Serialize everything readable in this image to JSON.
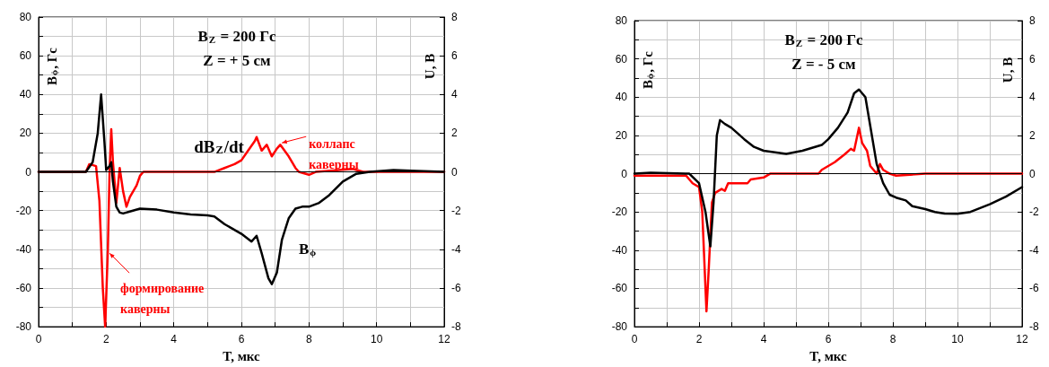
{
  "chart_data": [
    {
      "type": "line",
      "title": "B$_{Z}$ = 200 Гс",
      "subtitle": "Z = + 5 см",
      "xlabel": "T, мкс",
      "ylabel": "B$_{ϕ}$, Гс",
      "y2label": "U, В",
      "xlim": [
        0,
        12
      ],
      "xticks": [
        0,
        {
          "value": 1,
          "label": null
        },
        2,
        {
          "value": 3,
          "label": null
        },
        4,
        {
          "value": 5,
          "label": null
        },
        6,
        {
          "value": 7,
          "label": null
        },
        8,
        {
          "value": 9,
          "label": null
        },
        10,
        {
          "value": 11,
          "label": null
        },
        12
      ],
      "ylim": [
        -80,
        80
      ],
      "yticks": [
        -80,
        {
          "value": -70,
          "label": null
        },
        -60,
        {
          "value": -50,
          "label": null
        },
        -40,
        {
          "value": -30,
          "label": null
        },
        -20,
        {
          "value": -10,
          "label": null
        },
        0,
        {
          "value": 10,
          "label": null
        },
        20,
        {
          "value": 30,
          "label": null
        },
        40,
        {
          "value": 50,
          "label": null
        },
        60,
        {
          "value": 70,
          "label": null
        },
        80
      ],
      "y2lim": [
        -8,
        8
      ],
      "y2ticks": [
        -8,
        -6,
        -4,
        -2,
        0,
        2,
        4,
        6,
        8
      ],
      "grid": true,
      "marker": "none",
      "line_style": "solid",
      "ref_lines": [
        {
          "axis": "y",
          "value": 0,
          "color": "#000000"
        }
      ],
      "annotations": [
        {
          "text": "формирование каверны",
          "x": 2.1,
          "y": -42
        },
        {
          "text": "коллапс каверны",
          "x": 7.2,
          "y": 15
        }
      ],
      "series": [
        {
          "name": "B$_{ϕ}$",
          "color": "#000000",
          "x": [
            0,
            1.4,
            1.6,
            1.75,
            1.85,
            1.95,
            2.0,
            2.1,
            2.15,
            2.2,
            2.3,
            2.4,
            2.5,
            2.7,
            3.0,
            3.5,
            4.0,
            4.5,
            5.0,
            5.2,
            5.5,
            6.0,
            6.3,
            6.45,
            6.6,
            6.8,
            6.9,
            7.05,
            7.2,
            7.4,
            7.6,
            7.8,
            8.0,
            8.3,
            8.6,
            9.0,
            9.4,
            9.8,
            10.5,
            11.2,
            12
          ],
          "values": [
            0,
            0,
            5,
            20,
            40,
            15,
            1,
            3,
            5,
            -5,
            -18,
            -21,
            -21.5,
            -20.5,
            -19,
            -19.5,
            -21,
            -22,
            -22.5,
            -23,
            -27,
            -32,
            -36,
            -33,
            -42,
            -55,
            -58,
            -52,
            -35,
            -24,
            -19,
            -18,
            -18,
            -16,
            -12,
            -5,
            -1,
            0,
            1,
            0.5,
            0
          ]
        },
        {
          "name": "dB$_{Z}$/dt",
          "color": "#ff0000",
          "axis": "y2",
          "x": [
            0,
            1.4,
            1.5,
            1.7,
            1.8,
            1.9,
            1.97,
            2.05,
            2.1,
            2.15,
            2.2,
            2.3,
            2.4,
            2.5,
            2.6,
            2.7,
            2.9,
            3.0,
            3.1,
            5.2,
            5.5,
            5.8,
            6.0,
            6.2,
            6.4,
            6.45,
            6.6,
            6.75,
            6.9,
            7.05,
            7.15,
            7.4,
            7.6,
            7.7,
            8.0,
            8.2,
            9.3,
            9.6,
            12
          ],
          "values": [
            0,
            0,
            0.4,
            0.3,
            -1.5,
            -6,
            -8,
            -4,
            0,
            2.2,
            0.5,
            -1.6,
            0.2,
            -1,
            -1.8,
            -1.3,
            -0.7,
            -0.2,
            0,
            0,
            0.2,
            0.4,
            0.6,
            1.1,
            1.6,
            1.8,
            1.1,
            1.4,
            0.8,
            1.2,
            1.4,
            0.8,
            0.2,
            0,
            -0.15,
            0,
            0.15,
            0,
            0
          ]
        }
      ]
    },
    {
      "type": "line",
      "title": "B$_{Z}$ = 200 Гс",
      "subtitle": "Z = - 5 см",
      "xlabel": "T, мкс",
      "ylabel": "B$_{ϕ}$, Гс",
      "y2label": "U, В",
      "xlim": [
        0,
        12
      ],
      "xticks": [
        0,
        {
          "value": 1,
          "label": null
        },
        2,
        {
          "value": 3,
          "label": null
        },
        4,
        {
          "value": 5,
          "label": null
        },
        6,
        {
          "value": 7,
          "label": null
        },
        8,
        {
          "value": 9,
          "label": null
        },
        10,
        {
          "value": 11,
          "label": null
        },
        12
      ],
      "ylim": [
        -80,
        80
      ],
      "yticks": [
        -80,
        {
          "value": -70,
          "label": null
        },
        -60,
        {
          "value": -50,
          "label": null
        },
        -40,
        {
          "value": -30,
          "label": null
        },
        -20,
        {
          "value": -10,
          "label": null
        },
        0,
        {
          "value": 10,
          "label": null
        },
        20,
        {
          "value": 30,
          "label": null
        },
        40,
        {
          "value": 50,
          "label": null
        },
        60,
        {
          "value": 70,
          "label": null
        },
        80
      ],
      "y2lim": [
        -8,
        8
      ],
      "y2ticks": [
        -8,
        -6,
        -4,
        -2,
        0,
        2,
        4,
        6,
        8
      ],
      "grid": true,
      "marker": "none",
      "line_style": "solid",
      "ref_lines": [
        {
          "axis": "y",
          "value": 0,
          "color": "#000000"
        }
      ],
      "series": [
        {
          "color": "#000000",
          "x": [
            0,
            0.5,
            1.7,
            2.0,
            2.2,
            2.35,
            2.45,
            2.55,
            2.65,
            2.8,
            3.0,
            3.4,
            3.7,
            4.0,
            4.7,
            5.2,
            5.8,
            6.0,
            6.3,
            6.6,
            6.8,
            6.95,
            7.15,
            7.3,
            7.5,
            7.7,
            7.9,
            8.1,
            8.4,
            8.6,
            9.0,
            9.3,
            9.6,
            10.0,
            10.4,
            11.0,
            11.5,
            12
          ],
          "values": [
            0,
            0.5,
            0,
            -5,
            -20,
            -38,
            -15,
            20,
            28,
            26,
            24,
            18,
            14,
            12,
            10.3,
            12,
            15,
            18,
            24,
            32,
            42,
            44,
            40,
            25,
            5,
            -5,
            -11,
            -12.5,
            -14,
            -17,
            -18.5,
            -20,
            -20.8,
            -21,
            -20,
            -16,
            -12,
            -7
          ]
        },
        {
          "color": "#ff0000",
          "axis": "y2",
          "x": [
            0,
            1.6,
            1.8,
            2.0,
            2.1,
            2.2,
            2.23,
            2.3,
            2.4,
            2.5,
            2.7,
            2.8,
            2.9,
            3.5,
            3.6,
            4.0,
            4.2,
            5.7,
            5.8,
            6.2,
            6.5,
            6.7,
            6.8,
            6.9,
            6.95,
            7.05,
            7.2,
            7.3,
            7.5,
            7.6,
            7.7,
            7.9,
            8.1,
            9.0,
            12
          ],
          "values": [
            -0.1,
            -0.1,
            -0.5,
            -0.7,
            -2,
            -6,
            -7.2,
            -5,
            -1.5,
            -1,
            -0.8,
            -0.9,
            -0.5,
            -0.5,
            -0.3,
            -0.2,
            0,
            0,
            0.2,
            0.6,
            1,
            1.3,
            1.2,
            2,
            2.4,
            1.6,
            1.2,
            0.4,
            0,
            0.5,
            0.2,
            0,
            -0.1,
            0,
            0
          ]
        }
      ]
    }
  ]
}
